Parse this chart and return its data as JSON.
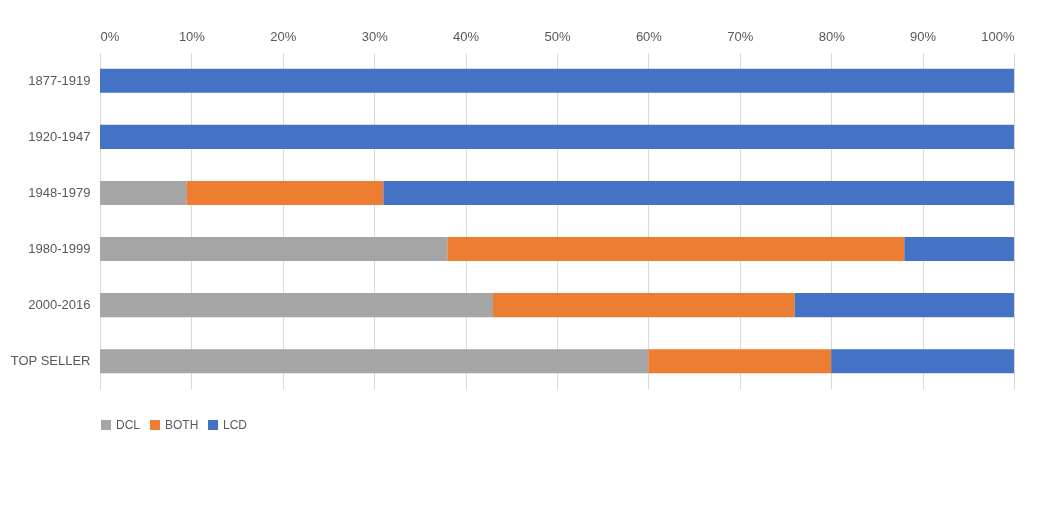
{
  "chart_data": {
    "type": "bar",
    "orientation": "horizontal",
    "stacked": true,
    "categories": [
      "1877-1919",
      "1920-1947",
      "1948-1979",
      "1980-1999",
      "2000-2016",
      "TOP SELLER"
    ],
    "series": [
      {
        "name": "DCL",
        "color": "#a5a5a5",
        "values": [
          0,
          0,
          9.5,
          38,
          43,
          60
        ]
      },
      {
        "name": "BOTH",
        "color": "#ed7d31",
        "values": [
          0,
          0,
          21.5,
          50,
          33,
          20
        ]
      },
      {
        "name": "LCD",
        "color": "#4472c4",
        "values": [
          100,
          100,
          69,
          12,
          24,
          20
        ]
      }
    ],
    "xlim": [
      0,
      100
    ],
    "xticks": [
      {
        "value": 0,
        "label": "0%"
      },
      {
        "value": 10,
        "label": "10%"
      },
      {
        "value": 20,
        "label": "20%"
      },
      {
        "value": 30,
        "label": "30%"
      },
      {
        "value": 40,
        "label": "40%"
      },
      {
        "value": 50,
        "label": "50%"
      },
      {
        "value": 60,
        "label": "60%"
      },
      {
        "value": 70,
        "label": "70%"
      },
      {
        "value": 80,
        "label": "80%"
      },
      {
        "value": 90,
        "label": "90%"
      },
      {
        "value": 100,
        "label": "100%"
      }
    ],
    "grid": "x",
    "legend": "bottom"
  }
}
